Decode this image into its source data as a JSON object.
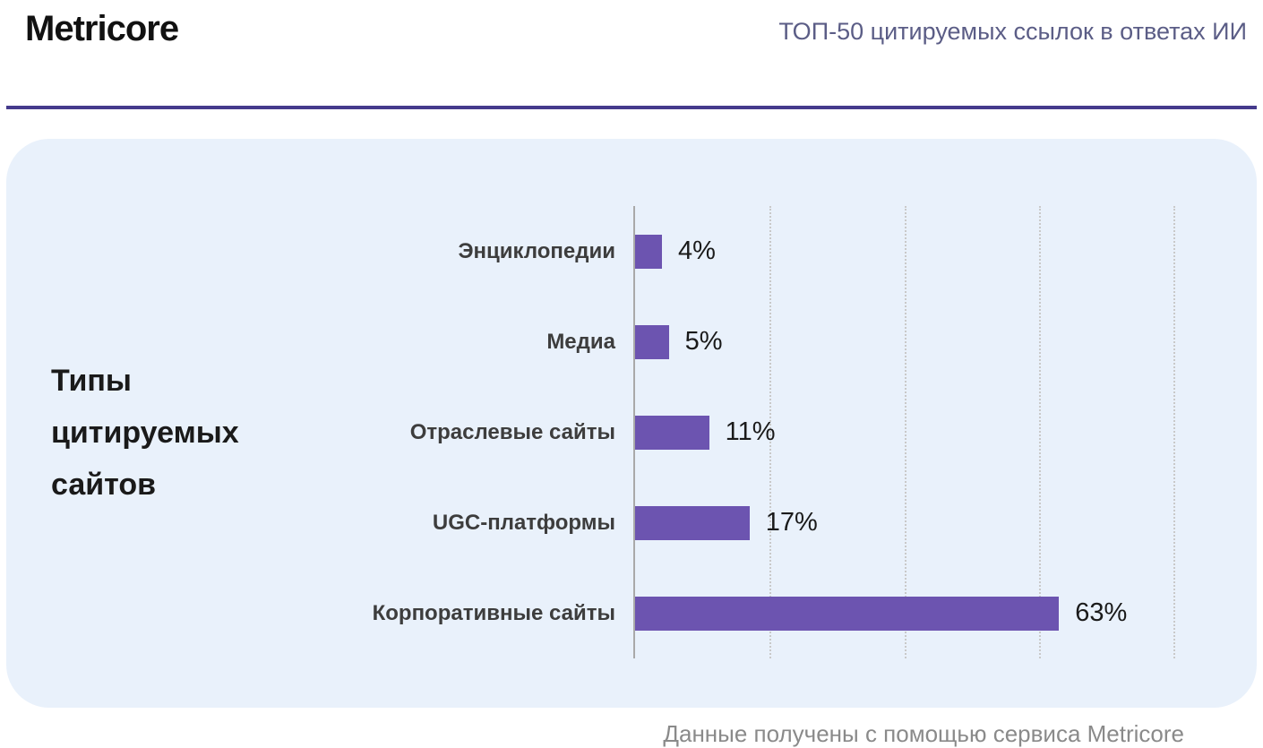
{
  "header": {
    "logo": "Metricore",
    "title": "ТОП-50 цитируемых ссылок в ответах ИИ"
  },
  "chart_data": {
    "type": "bar",
    "orientation": "horizontal",
    "title": "Типы цитируемых сайтов",
    "side_title_multiline": "Типы\nцитируемых\nсайтов",
    "categories": [
      "Энциклопедии",
      "Медиа",
      "Отраслевые сайты",
      "UGC-платформы",
      "Корпоративные сайты"
    ],
    "values": [
      4,
      5,
      11,
      17,
      63
    ],
    "value_labels": [
      "4%",
      "5%",
      "11%",
      "17%",
      "63%"
    ],
    "xlim": [
      0,
      80
    ],
    "gridlines": [
      20,
      40,
      60,
      80
    ],
    "grid": true,
    "legend": "none",
    "bar_color": "#6c54b0"
  },
  "footer": {
    "caption": "Данные получены с помощью сервиса Metricore"
  },
  "colors": {
    "accent_purple": "#6c54b0",
    "divider_purple": "#453a8c",
    "header_title": "#5b5d86",
    "card_background": "#e9f1fb",
    "axis_gray": "#a9a9a9",
    "gridline_gray": "#c9c9c9",
    "footer_gray": "#8a8a8a"
  }
}
